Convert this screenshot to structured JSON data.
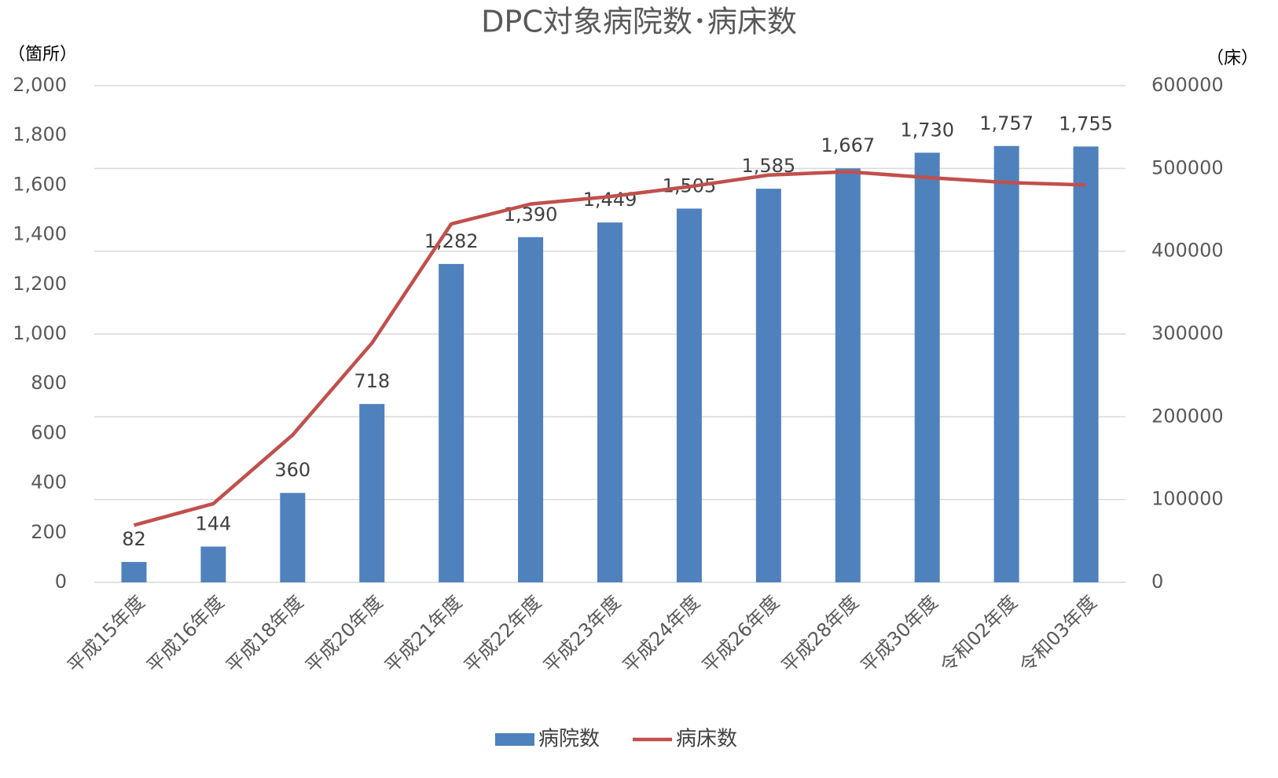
{
  "chart_data": {
    "type": "bar_line",
    "title": "DPC対象病院数･病床数",
    "y_unit": "（箇所）",
    "y2_unit": "（床）",
    "categories": [
      "平成15年度",
      "平成16年度",
      "平成18年度",
      "平成20年度",
      "平成21年度",
      "平成22年度",
      "平成23年度",
      "平成24年度",
      "平成26年度",
      "平成28年度",
      "平成30年度",
      "令和02年度",
      "令和03年度"
    ],
    "series": [
      {
        "name": "病院数",
        "type": "bar",
        "color": "#4f81bd",
        "values": [
          82,
          144,
          360,
          718,
          1282,
          1390,
          1449,
          1505,
          1585,
          1667,
          1730,
          1757,
          1755
        ],
        "value_labels": [
          "82",
          "144",
          "360",
          "718",
          "1,282",
          "1,390",
          "1,449",
          "1,505",
          "1,585",
          "1,667",
          "1,730",
          "1,757",
          "1,755"
        ]
      },
      {
        "name": "病床数",
        "type": "line",
        "axis": "y2",
        "color": "#c0504d",
        "values": [
          69000,
          95000,
          178000,
          289000,
          433000,
          457000,
          466000,
          478000,
          492000,
          496000,
          489000,
          483000,
          480000
        ]
      }
    ],
    "ylim": [
      0,
      2000
    ],
    "yticks": [
      0,
      200,
      400,
      600,
      800,
      {
        "value": 1000,
        "label": "1,000"
      },
      {
        "value": 1200,
        "label": "1,200"
      },
      {
        "value": 1400,
        "label": "1,400"
      },
      {
        "value": 1600,
        "label": "1,600"
      },
      {
        "value": 1800,
        "label": "1,800"
      },
      {
        "value": 2000,
        "label": "2,000"
      }
    ],
    "y2lim": [
      0,
      600000
    ],
    "y2ticks": [
      0,
      100000,
      200000,
      300000,
      400000,
      500000,
      600000
    ],
    "grid": true,
    "legend": "bottom"
  }
}
